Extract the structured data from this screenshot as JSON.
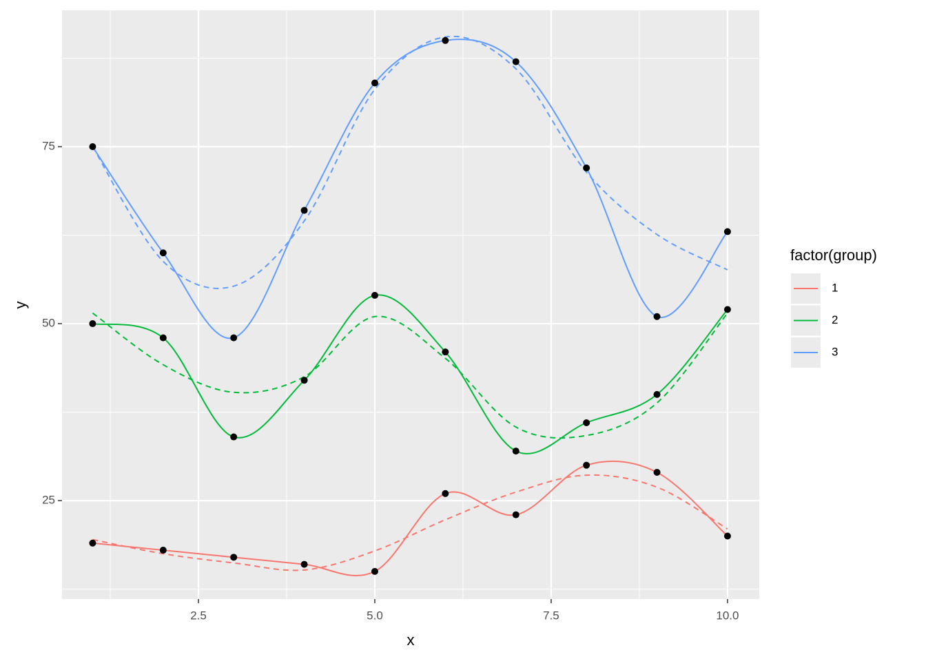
{
  "chart_data": {
    "type": "line",
    "x_label": "x",
    "y_label": "y",
    "legend_title": "factor(group)",
    "x": [
      1,
      2,
      3,
      4,
      5,
      6,
      7,
      8,
      9,
      10
    ],
    "series": [
      {
        "name": "1",
        "color": "#f8766d",
        "values": [
          19,
          18,
          17,
          16,
          15,
          26,
          23,
          30,
          29,
          20
        ],
        "smooth_values": [
          19.5,
          17.5,
          16.2,
          15.2,
          17.9,
          22.3,
          26.2,
          28.6,
          26.9,
          21
        ]
      },
      {
        "name": "2",
        "color": "#00ba38",
        "values": [
          50,
          48,
          34,
          42,
          54,
          46,
          32,
          36,
          40,
          52
        ],
        "smooth_values": [
          51.5,
          44.2,
          40.3,
          42.5,
          51,
          45.1,
          35.4,
          34.2,
          38.8,
          51.5
        ]
      },
      {
        "name": "3",
        "color": "#619cff",
        "values": [
          75,
          60,
          48,
          66,
          84,
          90,
          87,
          72,
          51,
          63
        ],
        "smooth_values": [
          75,
          58.8,
          55.3,
          64.5,
          83.1,
          90.5,
          86,
          71.4,
          62.6,
          57.6
        ]
      }
    ],
    "point_color": "#000000",
    "xlim": [
      0.566,
      10.45
    ],
    "ylim": [
      11.1,
      94.26
    ],
    "xticks": [
      2.5,
      {
        "value": 5,
        "label": "5.0"
      },
      7.5,
      {
        "value": 10,
        "label": "10.0"
      }
    ],
    "yticks": [
      25,
      50,
      75
    ],
    "x_minor_breaks": [
      1.25,
      3.75,
      6.25,
      8.75
    ],
    "y_minor_breaks": [
      12.5,
      37.5,
      62.5,
      87.5
    ],
    "grid": true,
    "legend_position": "right"
  }
}
